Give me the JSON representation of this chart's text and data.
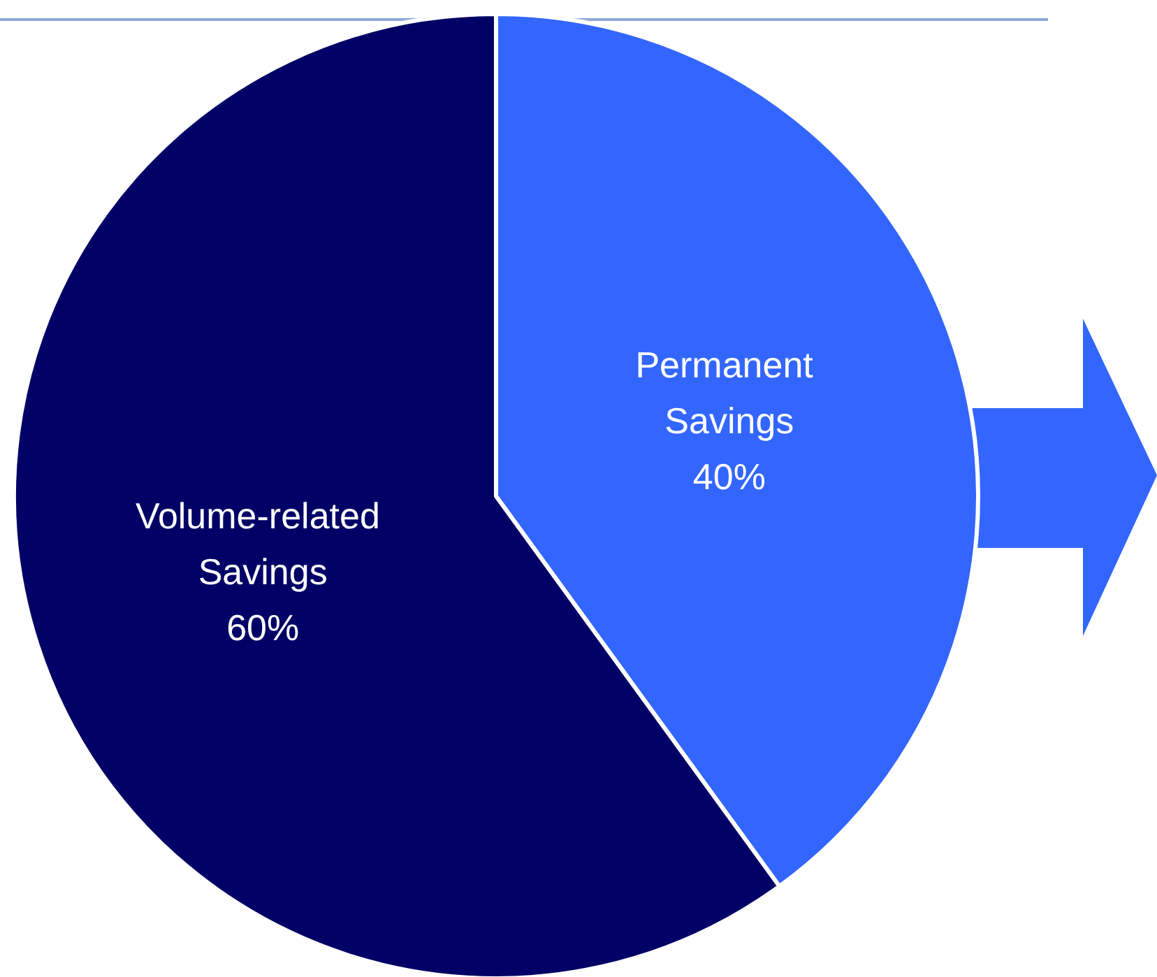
{
  "chart_data": {
    "type": "pie",
    "categories": [
      "Permanent Savings",
      "Volume-related Savings"
    ],
    "values": [
      40,
      60
    ],
    "colors": [
      "#3366ff",
      "#000066"
    ],
    "value_labels": [
      "40%",
      "60%"
    ],
    "legend": false
  }
}
